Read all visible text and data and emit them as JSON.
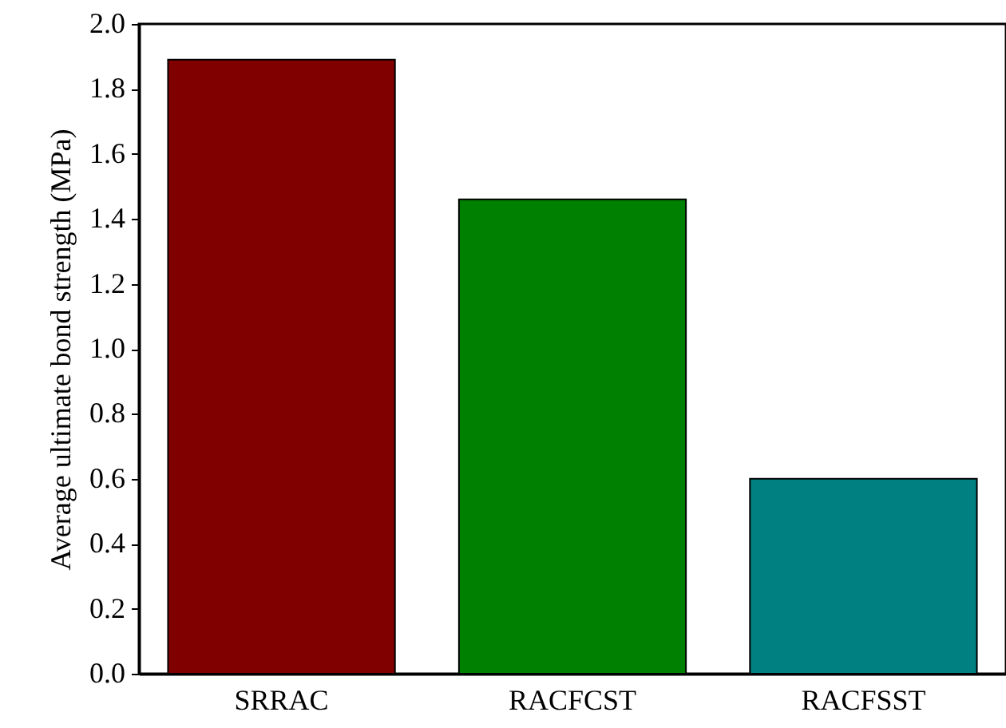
{
  "chart_data": {
    "type": "bar",
    "ylabel": "Average ultimate bond strength (MPa)",
    "categories": [
      "SRRAC",
      "RACFCST",
      "RACFSST"
    ],
    "values": [
      1.89,
      1.46,
      0.6
    ],
    "colors": [
      "#800000",
      "#008000",
      "#008080"
    ],
    "ylim": [
      0,
      2.0
    ],
    "yticks": [
      {
        "value": 0,
        "label": "0.0"
      },
      0.2,
      0.4,
      0.6,
      0.8,
      {
        "value": 1,
        "label": "1.0"
      },
      1.2,
      1.4,
      1.6,
      1.8,
      {
        "value": 2,
        "label": "2.0"
      }
    ]
  }
}
